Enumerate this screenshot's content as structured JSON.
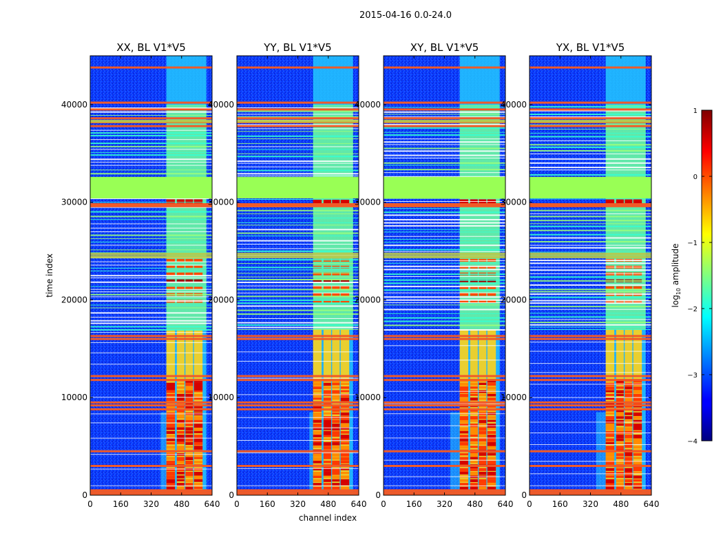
{
  "chart_data": {
    "type": "heatmap",
    "suptitle": "2015-04-16 0.0-24.0",
    "xlabel": "channel index",
    "ylabel": "time index",
    "xlim": [
      0,
      640
    ],
    "ylim": [
      0,
      45000
    ],
    "xticks": [
      0,
      160,
      320,
      480,
      640
    ],
    "yticks": [
      0,
      10000,
      20000,
      30000,
      40000
    ],
    "panels": [
      {
        "title": "XX, BL V1*V5",
        "band_start": 400,
        "band_end": 610,
        "low_burst_start": 370
      },
      {
        "title": "YY, BL V1*V5",
        "band_start": 400,
        "band_end": 610,
        "low_burst_start": 380
      },
      {
        "title": "XY, BL V1*V5",
        "band_start": 400,
        "band_end": 610,
        "low_burst_start": 350
      },
      {
        "title": "YX, BL V1*V5",
        "band_start": 400,
        "band_end": 610,
        "low_burst_start": 350
      }
    ],
    "band_sub_channels": [
      [
        400,
        445
      ],
      [
        455,
        495
      ],
      [
        500,
        540
      ],
      [
        545,
        590
      ]
    ],
    "saturated_time_block": [
      30400,
      32600
    ],
    "flagged_rows": [
      100,
      300,
      500,
      3000,
      4500,
      8800,
      9200,
      9500,
      11800,
      12200,
      16000,
      16300,
      29600,
      29800,
      37800,
      38200,
      38600,
      39500,
      40200,
      43800
    ],
    "dense_line_range": [
      17000,
      40000
    ],
    "colorbar": {
      "label": "log10 amplitude",
      "label_main": "log",
      "label_sub": "10",
      "label_rest": " amplitude",
      "range": [
        -4,
        1
      ],
      "ticks": [
        "1",
        "0",
        "−1",
        "−2",
        "−3",
        "−4"
      ],
      "colormap": "jet"
    }
  }
}
